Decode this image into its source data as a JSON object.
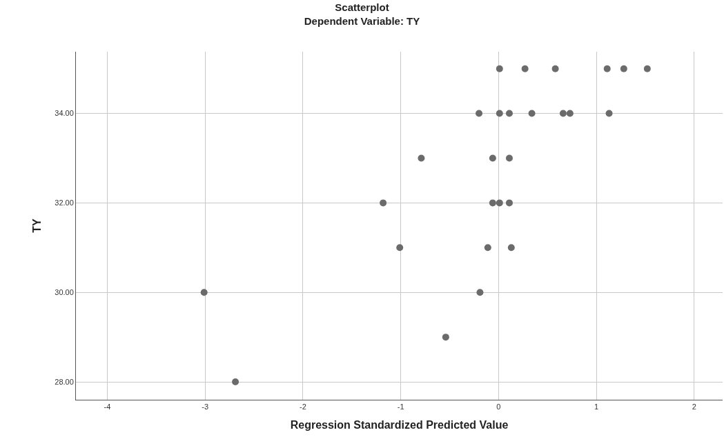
{
  "chart_data": {
    "type": "scatter",
    "title": "Scatterplot",
    "subtitle": "Dependent Variable: TY",
    "xlabel": "Regression Standardized Predicted Value",
    "ylabel": "TY",
    "series": [
      {
        "color": "#6b6b6b",
        "x": [
          0.01,
          0.27,
          0.58,
          1.11,
          1.28,
          1.52,
          -0.2,
          0.01,
          0.11,
          0.34,
          0.66,
          0.73,
          1.13,
          -0.79,
          -0.06,
          0.11,
          -1.18,
          -0.06,
          0.01,
          0.11,
          -1.01,
          -0.11,
          0.13,
          -3.01,
          -0.19,
          -0.54,
          -2.69
        ],
        "values": [
          35,
          35,
          35,
          35,
          35,
          35,
          34,
          34,
          34,
          34,
          34,
          34,
          34,
          33,
          33,
          33,
          32,
          32,
          32,
          32,
          31,
          31,
          31,
          30,
          30,
          29,
          28
        ]
      }
    ],
    "xlim": [
      -4.32,
      2.29
    ],
    "ylim": [
      27.6,
      35.38
    ],
    "xticks": [
      -4,
      -3,
      -2,
      -1,
      0,
      1,
      2
    ],
    "yticks": [
      {
        "value": 28,
        "label": "28.00"
      },
      {
        "value": 30,
        "label": "30.00"
      },
      {
        "value": 32,
        "label": "32.00"
      },
      {
        "value": 34,
        "label": "34.00"
      }
    ],
    "grid": true,
    "marker": "circle"
  }
}
